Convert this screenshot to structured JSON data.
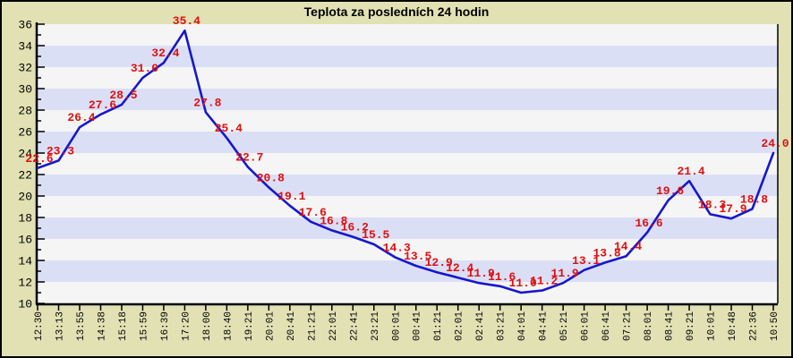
{
  "window": {
    "title": "Teplota za posledních 24 hodin"
  },
  "colors": {
    "background": "#e1e1b4",
    "band_light": "#f5f5f5",
    "band_blue": "#dbdff6",
    "line": "#1717cd",
    "value_label": "#e01010",
    "axis": "#000000",
    "tick_text": "#000000"
  },
  "chart_data": {
    "type": "line",
    "title": "Teplota za posledních 24 hodin",
    "xlabel": "",
    "ylabel": "",
    "ylim": [
      10,
      36
    ],
    "y_tick_step": 2,
    "y_minor_tick_step": 1,
    "y_tick_labels": [
      "36",
      "34",
      "32",
      "30",
      "28",
      "26",
      "24",
      "22",
      "20",
      "18",
      "16",
      "14",
      "12",
      "10"
    ],
    "grid": "alternating-horizontal-bands",
    "legend": "none",
    "categories": [
      "12:30",
      "13:13",
      "13:55",
      "14:38",
      "15:18",
      "15:59",
      "16:39",
      "17:20",
      "18:00",
      "18:40",
      "19:21",
      "20:01",
      "20:41",
      "21:21",
      "22:01",
      "22:41",
      "23:21",
      "00:01",
      "00:41",
      "01:21",
      "02:01",
      "02:41",
      "03:21",
      "04:01",
      "04:41",
      "05:21",
      "06:01",
      "06:41",
      "07:21",
      "08:01",
      "08:41",
      "09:21",
      "10:01",
      "10:48",
      "22:36",
      "10:50"
    ],
    "values": [
      22.6,
      23.3,
      26.4,
      27.6,
      28.5,
      31.0,
      32.4,
      35.4,
      27.8,
      25.4,
      22.7,
      20.8,
      19.1,
      17.6,
      16.8,
      16.2,
      15.5,
      14.3,
      13.5,
      12.9,
      12.4,
      11.9,
      11.6,
      11.0,
      11.2,
      11.9,
      13.1,
      13.8,
      14.4,
      16.6,
      19.6,
      21.4,
      18.3,
      17.9,
      18.8,
      24.0
    ],
    "point_labels": [
      "22.6",
      "23.3",
      "26.4",
      "27.6",
      "28.5",
      "31.0",
      "32.4",
      "35.4",
      "27.8",
      "25.4",
      "22.7",
      "20.8",
      "19.1",
      "17.6",
      "16.8",
      "16.2",
      "15.5",
      "14.3",
      "13.5",
      "12.9",
      "12.4",
      "11.9",
      "11.6",
      "11.0",
      "11.2",
      "11.9",
      "13.1",
      "13.8",
      "14.4",
      "16.6",
      "19.6",
      "21.4",
      "18.3",
      "17.9",
      "18.8",
      "24.0"
    ]
  }
}
